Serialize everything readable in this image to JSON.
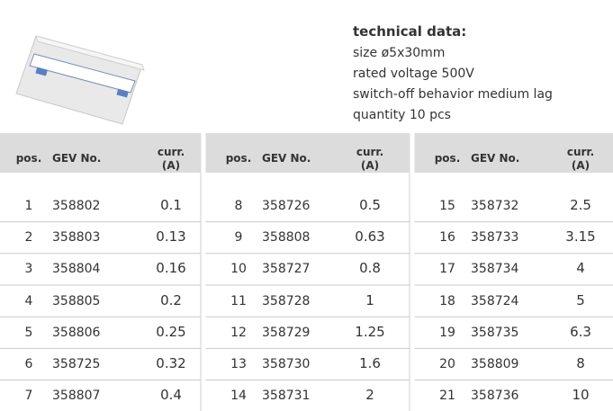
{
  "technical_data": {
    "title": "technical data:",
    "lines": [
      "size ø5x30mm",
      "rated voltage 500V",
      "switch-off behavior medium lag",
      "quantity 10 pcs"
    ]
  },
  "table": {
    "headers": {
      "pos": "pos.",
      "gev": "GEV No.",
      "curr": "curr.",
      "unit": "(A)"
    },
    "rows": [
      [
        1,
        358802,
        0.1,
        8,
        358726,
        0.5,
        15,
        358732,
        2.5
      ],
      [
        2,
        358803,
        0.13,
        9,
        358808,
        0.63,
        16,
        358733,
        3.15
      ],
      [
        3,
        358804,
        0.16,
        10,
        358727,
        0.8,
        17,
        358734,
        4
      ],
      [
        4,
        358805,
        0.2,
        11,
        358728,
        1,
        18,
        358724,
        5
      ],
      [
        5,
        358806,
        0.25,
        12,
        358729,
        1.25,
        19,
        358735,
        6.3
      ],
      [
        6,
        358725,
        0.32,
        13,
        358730,
        1.6,
        20,
        358809,
        8
      ],
      [
        7,
        358807,
        0.4,
        14,
        358731,
        2,
        21,
        358736,
        10
      ]
    ]
  }
}
